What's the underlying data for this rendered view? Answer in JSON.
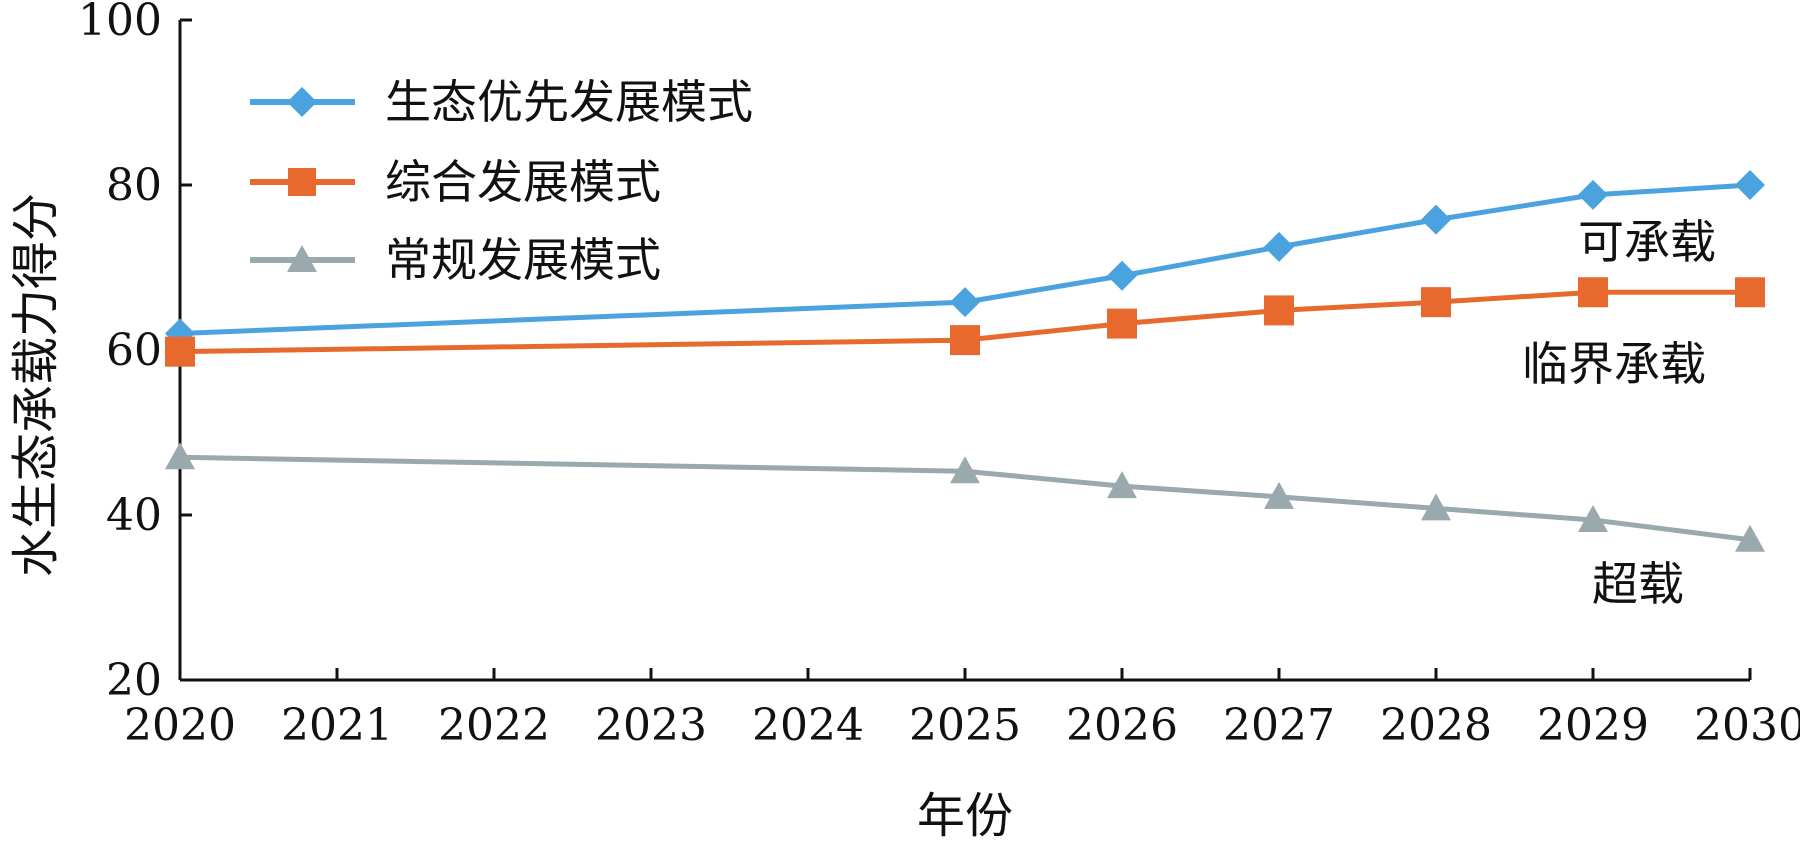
{
  "chart_data": {
    "type": "line",
    "xlabel": "年份",
    "ylabel": "水生态承载力得分",
    "x": [
      2020,
      2025,
      2026,
      2027,
      2028,
      2029,
      2030
    ],
    "x_ticks": [
      "2020",
      "2021",
      "2022",
      "2023",
      "2024",
      "2025",
      "2026",
      "2027",
      "2028",
      "2029",
      "2030"
    ],
    "y_ticks": [
      "20",
      "40",
      "60",
      "80",
      "100"
    ],
    "xlim": [
      2020,
      2030
    ],
    "ylim": [
      20,
      100
    ],
    "grid": false,
    "legend_position": "top-left",
    "series": [
      {
        "name": "生态优先发展模式",
        "color": "#4aa3df",
        "marker": "diamond",
        "values": [
          62,
          65.8,
          69,
          72.5,
          75.8,
          78.8,
          80
        ]
      },
      {
        "name": "综合发展模式",
        "color": "#e8692e",
        "marker": "square",
        "values": [
          59.8,
          61.2,
          63.2,
          64.8,
          65.8,
          67,
          67
        ]
      },
      {
        "name": "常规发展模式",
        "color": "#9aa9ae",
        "marker": "triangle",
        "values": [
          47,
          45.3,
          43.5,
          42.2,
          40.8,
          39.4,
          37
        ]
      }
    ],
    "annotations": [
      "可承载",
      "临界承载",
      "超载"
    ]
  }
}
